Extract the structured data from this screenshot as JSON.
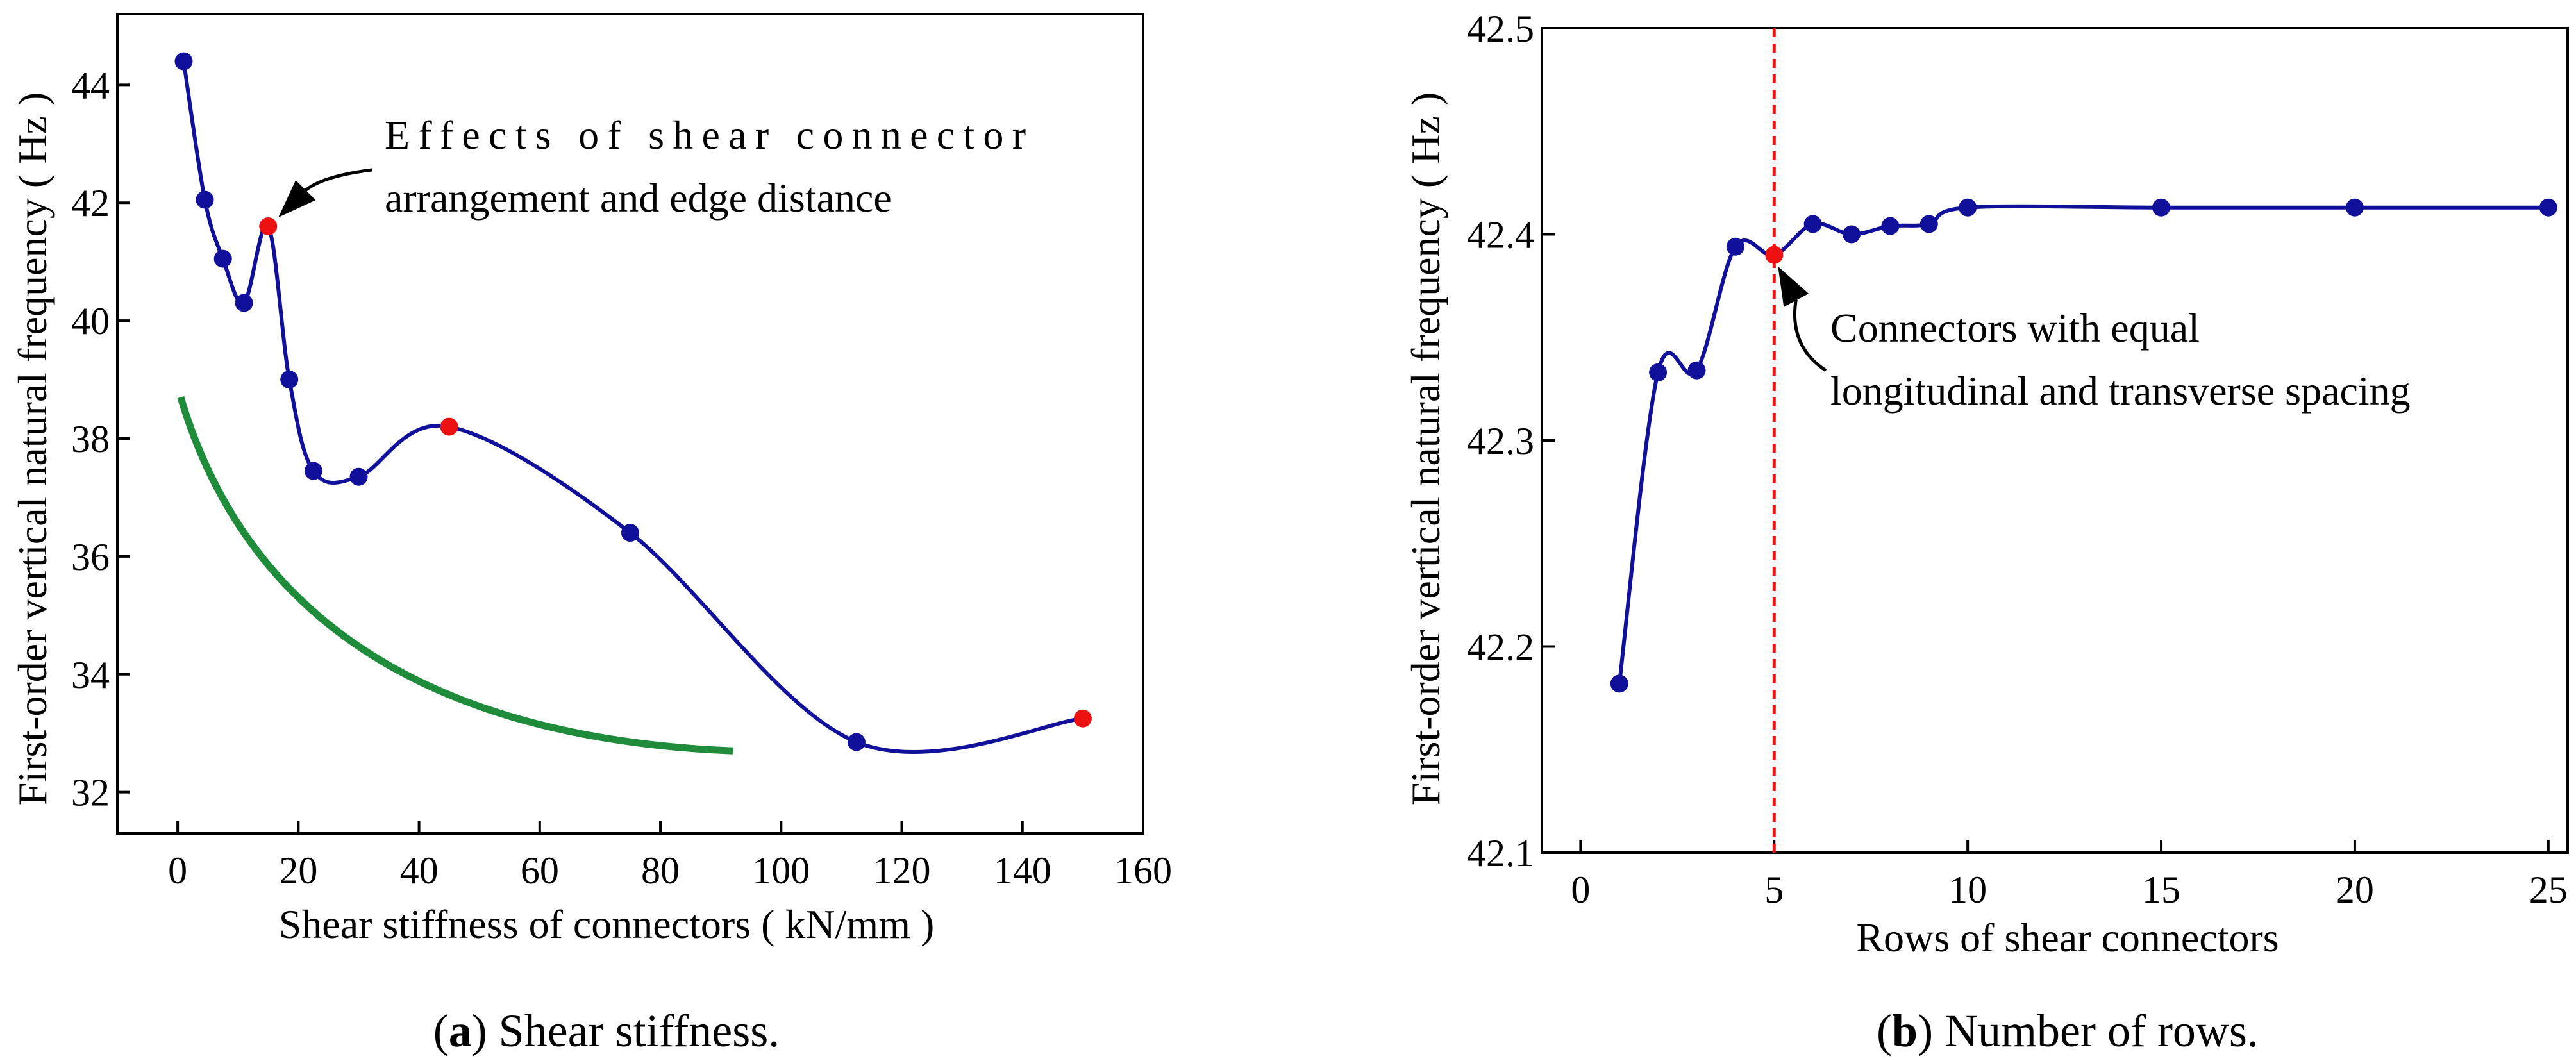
{
  "chart_data": [
    {
      "type": "line",
      "panel_label": "a",
      "caption": "Shear stiffness.",
      "xlabel": "Shear stiffness of connectors ( kN/mm )",
      "ylabel": "First-order vertical natural frequency ( Hz )",
      "xlim": [
        -10,
        160
      ],
      "ylim": [
        31.3,
        45.2
      ],
      "xticks": [
        0,
        20,
        40,
        60,
        80,
        100,
        120,
        140,
        160
      ],
      "yticks": [
        32,
        34,
        36,
        38,
        40,
        42,
        44
      ],
      "grid": false,
      "series": [
        {
          "name": "Natural frequency",
          "color": "#10109a",
          "x": [
            1,
            4.5,
            7.5,
            11,
            15,
            18.5,
            22.5,
            30,
            45,
            75,
            112.5,
            150
          ],
          "y": [
            44.4,
            42.05,
            41.05,
            40.3,
            41.6,
            39.0,
            37.45,
            37.35,
            38.2,
            36.4,
            32.85,
            33.25
          ],
          "highlighted_indices": [
            4,
            8,
            11
          ],
          "highlight_color": "#ee1111"
        }
      ],
      "annotations": [
        {
          "text_lines": [
            "Effects of shear connector",
            "arrangement and edge distance"
          ],
          "points_to": [
            15,
            41.6
          ]
        }
      ],
      "trend_arrow": {
        "color": "#1e8c3a",
        "from": [
          0.5,
          38.7
        ],
        "to": [
          92,
          32.7
        ],
        "meaning": "decreasing trend"
      }
    },
    {
      "type": "line",
      "panel_label": "b",
      "caption": "Number of rows.",
      "xlabel": "Rows of shear connectors",
      "ylabel": "First-order vertical natural frequency ( Hz )",
      "xlim": [
        -1,
        25.5
      ],
      "ylim": [
        42.1,
        42.5
      ],
      "xticks": [
        0,
        5,
        10,
        15,
        20,
        25
      ],
      "yticks": [
        42.1,
        42.2,
        42.3,
        42.4,
        42.5
      ],
      "grid": false,
      "series": [
        {
          "name": "Natural frequency",
          "color": "#10109a",
          "x": [
            1,
            2,
            3,
            4,
            5,
            6,
            7,
            8,
            9,
            10,
            15,
            20,
            25
          ],
          "y": [
            42.182,
            42.333,
            42.334,
            42.394,
            42.39,
            42.405,
            42.4,
            42.404,
            42.405,
            42.413,
            42.413,
            42.413,
            42.413
          ],
          "highlighted_indices": [
            4
          ],
          "highlight_color": "#ee1111"
        }
      ],
      "reference_line": {
        "x": 5,
        "color": "#ee1111",
        "style": "dashed"
      },
      "annotations": [
        {
          "text_lines": [
            "Connectors with equal",
            "longitudinal and transverse spacing"
          ],
          "points_to": [
            5,
            42.39
          ]
        }
      ]
    }
  ]
}
